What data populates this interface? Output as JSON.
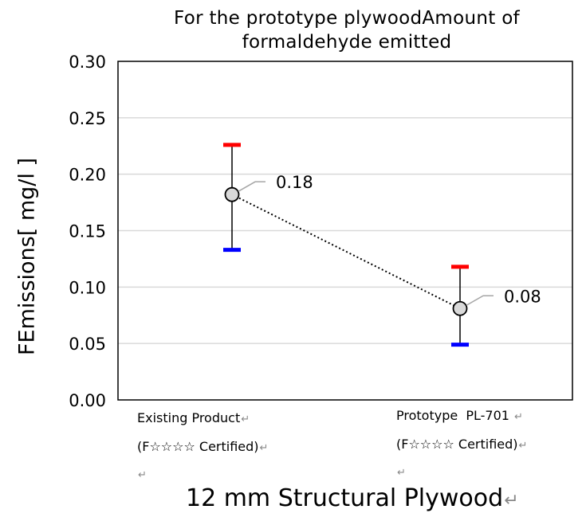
{
  "chart_data": {
    "type": "scatter",
    "title_line1": "For the prototype plywoodAmount of",
    "title_line2": "formaldehyde emitted",
    "ylabel": "FEmissions[ mg/l ]",
    "xlabel": "12 mm Structural Plywood",
    "ylim": [
      0,
      0.3
    ],
    "yticks": [
      "0.00",
      "0.05",
      "0.10",
      "0.15",
      "0.20",
      "0.25",
      "0.30"
    ],
    "categories": [
      {
        "line1": "Existing Product",
        "line2": "(F☆☆☆☆ Certified)"
      },
      {
        "line1": "Prototype  PL-701 ",
        "line2": "(F☆☆☆☆ Certified)"
      }
    ],
    "points": [
      {
        "mean": 0.182,
        "max": 0.226,
        "min": 0.133,
        "label": "0.18"
      },
      {
        "mean": 0.081,
        "max": 0.118,
        "min": 0.049,
        "label": "0.08"
      }
    ],
    "colors": {
      "max": "#ff0000",
      "min": "#0000ff",
      "marker_fill": "#d9d9d9",
      "grid": "#d9d9d9",
      "leader": "#a6a6a6"
    },
    "return_mark": "↵"
  }
}
